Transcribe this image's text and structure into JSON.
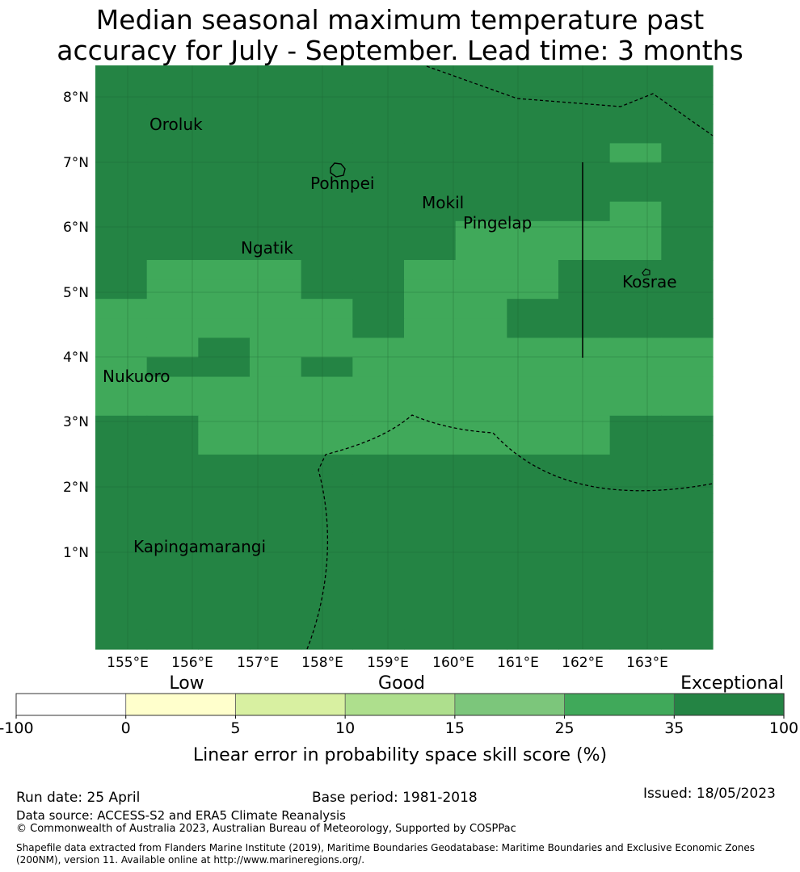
{
  "title_line1": "Median seasonal maximum temperature past",
  "title_line2": "accuracy for July - September. Lead time: 3 months",
  "colors": {
    "dark": "#248444",
    "medium": "#40a95a",
    "light_green": "#7cc67b",
    "pale_green": "#aedf8d",
    "lime": "#d8f0a1",
    "cream": "#ffffcc",
    "white": "#ffffff"
  },
  "map": {
    "lat_ticks": [
      "8°N",
      "7°N",
      "6°N",
      "5°N",
      "4°N",
      "3°N",
      "2°N",
      "1°N"
    ],
    "lon_ticks": [
      "155°E",
      "156°E",
      "157°E",
      "158°E",
      "159°E",
      "160°E",
      "161°E",
      "162°E",
      "163°E"
    ],
    "places": [
      "Oroluk",
      "Pohnpei",
      "Mokil",
      "Pingelap",
      "Ngatik",
      "Kosrae",
      "Nukuoro",
      "Kapingamarangi"
    ],
    "grid_rows": [
      "DDDDDDDDDDDD",
      "DDDDDDDDDDDD",
      "DDDDDDDDDDDD",
      "DDDDDDDDDDDD",
      "DDDDDDDDDDMD",
      "DDDDDDDDDDDD",
      "DDDDDDDDDDDD",
      "DDDDDDDDDDMD",
      "DDDDDDDMMMMD",
      "DDDDDDDMMMMD",
      "DMMMDDMMMDDD",
      "DMMMDDMMMDDD",
      "MMMMMDMMDDDD",
      "MMMMMDMMDDDD",
      "MMDMMMMMMMMM",
      "MDDMDMMMMMMM",
      "MMMMMMMMMMMM",
      "MMMMMMMMMMMM",
      "DDMMMMMMMMDD",
      "DDMMMMMMMMDD",
      "DDDDDDDDDDDD",
      "DDDDDDDDDDDD",
      "DDDDDDDDDDDD",
      "DDDDDDDDDDDD",
      "DDDDDDDDDDDD",
      "DDDDDDDDDDDD",
      "DDDDDDDDDDDD",
      "DDDDDDDDDDDD",
      "DDDDDDDDDDDD",
      "DDDDDDDDDDDD"
    ]
  },
  "legend": {
    "categories": [
      "Low",
      "Good",
      "Exceptional"
    ],
    "boundaries": [
      "-100",
      "0",
      "5",
      "10",
      "15",
      "25",
      "35",
      "100"
    ],
    "bin_colors": [
      "#ffffff",
      "#ffffcc",
      "#d8f0a1",
      "#aedf8d",
      "#7cc67b",
      "#40a95a",
      "#248444"
    ],
    "label": "Linear error in probability space skill score (%)"
  },
  "footer": {
    "run_date": "Run date: 25 April",
    "base_period": "Base period: 1981-2018",
    "issued": "Issued: 18/05/2023",
    "data_source": "Data source: ACCESS-S2 and ERA5 Climate Reanalysis",
    "copyright": "© Commonwealth of Australia 2023, Australian Bureau of Meteorology, Supported by COSPPac",
    "shapefile": "Shapefile data extracted from Flanders Marine Institute (2019), Maritime Boundaries Geodatabase: Maritime Boundaries and Exclusive Economic Zones (200NM), version 11. Available online at http://www.marineregions.org/."
  }
}
